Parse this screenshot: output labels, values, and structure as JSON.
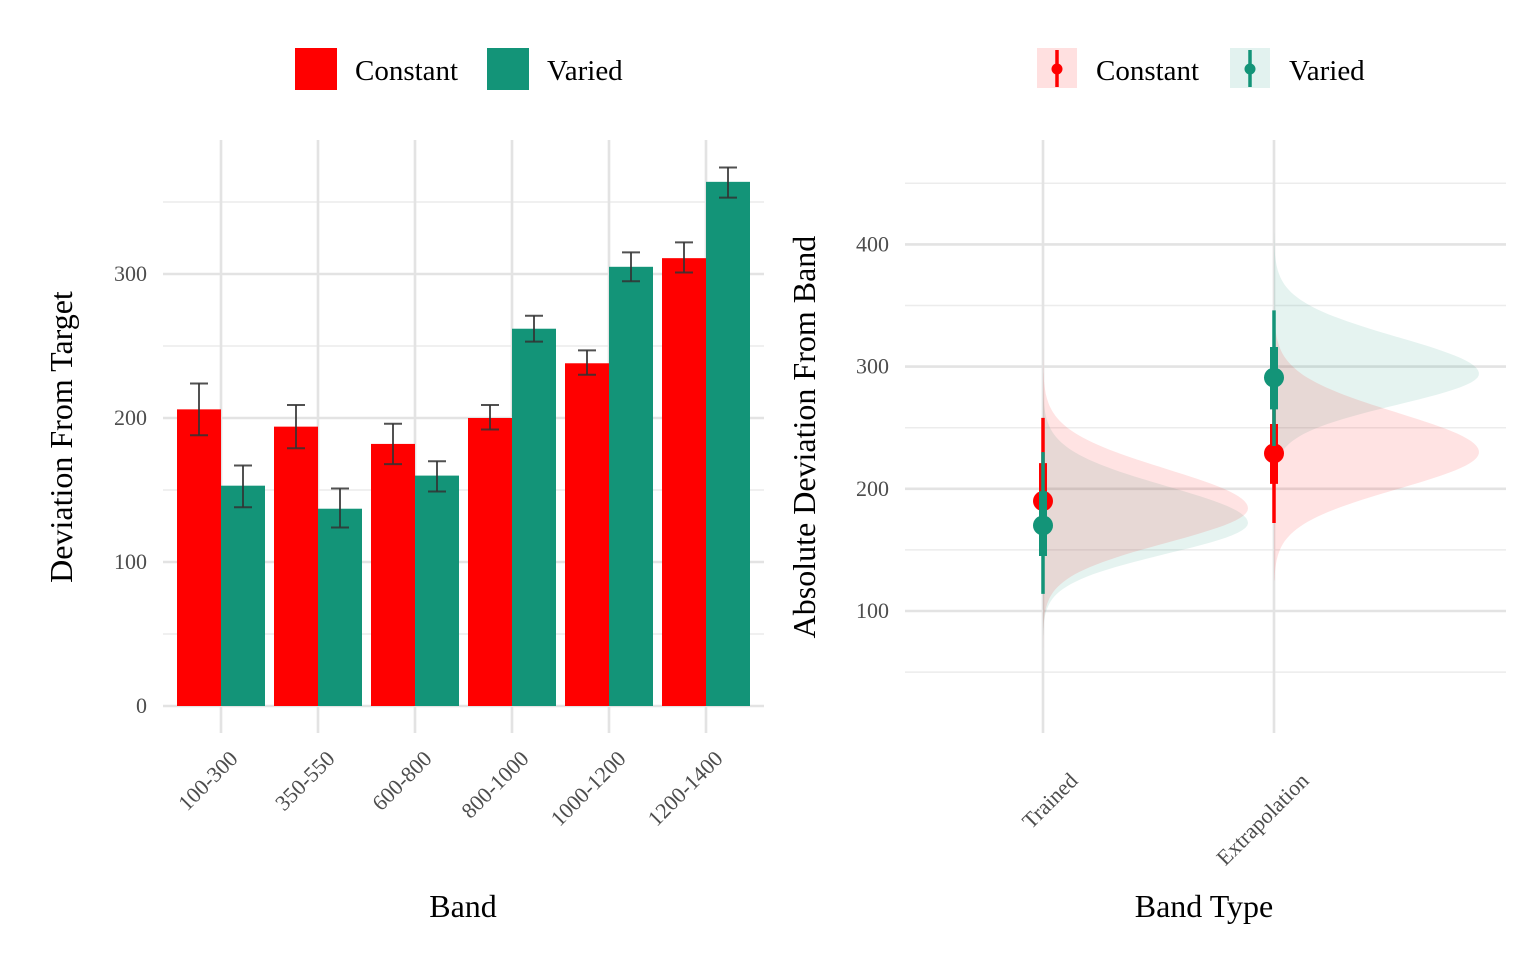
{
  "colors": {
    "constant": "#ff0000",
    "varied": "#139478",
    "error_bar": "#333333"
  },
  "legend": {
    "constant": "Constant",
    "varied": "Varied"
  },
  "chart_data": [
    {
      "type": "bar",
      "xlabel": "Band",
      "ylabel": "Deviation From Target",
      "categories": [
        "100-300",
        "350-550",
        "600-800",
        "800-1000",
        "1000-1200",
        "1200-1400"
      ],
      "ylim": [
        0,
        390
      ],
      "yticks": [
        0,
        100,
        200,
        300
      ],
      "grid": true,
      "legend_position": "top",
      "series": [
        {
          "name": "Constant",
          "color_key": "constant",
          "values": [
            206,
            194,
            182,
            200,
            238,
            311
          ],
          "error_low": [
            188,
            179,
            168,
            192,
            230,
            301
          ],
          "error_high": [
            224,
            209,
            196,
            209,
            247,
            322
          ]
        },
        {
          "name": "Varied",
          "color_key": "varied",
          "values": [
            153,
            137,
            160,
            262,
            305,
            364
          ],
          "error_low": [
            138,
            124,
            149,
            253,
            295,
            353
          ],
          "error_high": [
            167,
            151,
            170,
            271,
            315,
            374
          ]
        }
      ]
    },
    {
      "type": "scatter",
      "subtype": "half-eye (density + point interval)",
      "xlabel": "Band Type",
      "ylabel": "Absolute Deviation From Band",
      "categories": [
        "Trained",
        "Extrapolation"
      ],
      "ylim": [
        28,
        470
      ],
      "yticks": [
        100,
        200,
        300,
        400
      ],
      "grid": true,
      "legend_position": "top",
      "series": [
        {
          "name": "Constant",
          "color_key": "constant",
          "points": [
            {
              "category": "Trained",
              "median": 190,
              "inner": [
                172,
                221
              ],
              "outer": [
                150,
                258
              ],
              "density": {
                "mode": 184,
                "sd_low": 28,
                "sd_high": 32,
                "extent": [
                  70,
                  345
                ]
              }
            },
            {
              "category": "Extrapolation",
              "median": 229,
              "inner": [
                204,
                253
              ],
              "outer": [
                172,
                287
              ],
              "density": {
                "mode": 230,
                "sd_low": 30,
                "sd_high": 32,
                "extent": [
                  125,
                  345
                ]
              }
            }
          ]
        },
        {
          "name": "Varied",
          "color_key": "varied",
          "points": [
            {
              "category": "Trained",
              "median": 170,
              "inner": [
                145,
                198
              ],
              "outer": [
                114,
                230
              ],
              "density": {
                "mode": 172,
                "sd_low": 25,
                "sd_high": 30,
                "extent": [
                  80,
                  305
                ]
              }
            },
            {
              "category": "Extrapolation",
              "median": 291,
              "inner": [
                265,
                316
              ],
              "outer": [
                235,
                346
              ],
              "density": {
                "mode": 294,
                "sd_low": 25,
                "sd_high": 30,
                "extent": [
                  165,
                  410
                ]
              }
            }
          ]
        }
      ]
    }
  ]
}
